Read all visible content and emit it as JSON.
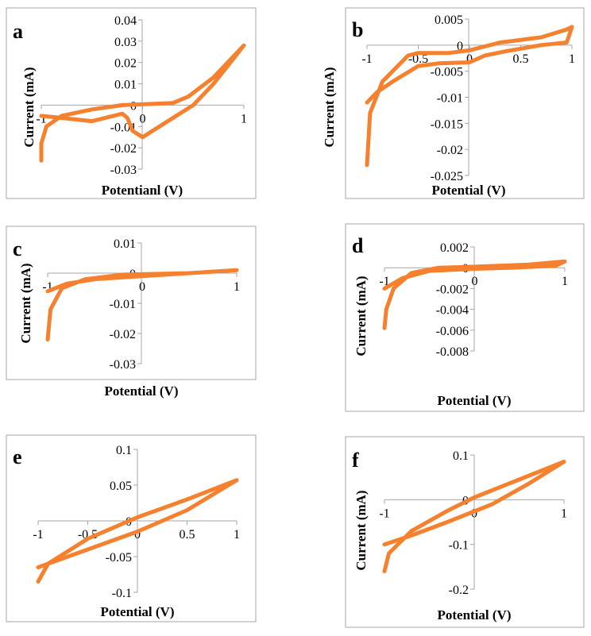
{
  "chart_data": [
    {
      "panel": "a",
      "type": "line",
      "xlabel": "Potentianl (V)",
      "ylabel": "Current (mA)",
      "xlim": [
        -1,
        1
      ],
      "ylim": [
        -0.03,
        0.04
      ],
      "xticks": [
        "-1",
        "0",
        "1"
      ],
      "xtick_values": [
        -1,
        0,
        1
      ],
      "yticks": [
        "0.04",
        "0.03",
        "0.02",
        "0.01",
        "0",
        "-0.01",
        "-0.02",
        "-0.03"
      ],
      "ytick_values": [
        0.04,
        0.03,
        0.02,
        0.01,
        0,
        -0.01,
        -0.02,
        -0.03
      ],
      "x": [
        -1,
        -1,
        -0.95,
        -0.8,
        -0.5,
        -0.2,
        0.3,
        0.45,
        0.7,
        1,
        0.7,
        0.5,
        0.3,
        0,
        -0.1,
        -0.15,
        -0.2,
        -0.5,
        -0.8,
        -1
      ],
      "y": [
        -0.026,
        -0.018,
        -0.01,
        -0.005,
        -0.002,
        0,
        0.001,
        0.004,
        0.013,
        0.028,
        0.01,
        0,
        -0.006,
        -0.015,
        -0.012,
        -0.006,
        -0.004,
        -0.0075,
        -0.006,
        -0.005
      ]
    },
    {
      "panel": "b",
      "type": "line",
      "xlabel": "Potential (V)",
      "ylabel": "Current (mA)",
      "xlim": [
        -1,
        1
      ],
      "ylim": [
        -0.025,
        0.005
      ],
      "xticks": [
        "-1",
        "-0.5",
        "0",
        "0.5",
        "1"
      ],
      "xtick_values": [
        -1,
        -0.5,
        0,
        0.5,
        1
      ],
      "yticks": [
        "0.005",
        "0",
        "-0.005",
        "-0.01",
        "-0.015",
        "-0.02",
        "-0.025"
      ],
      "ytick_values": [
        0.005,
        0,
        -0.005,
        -0.01,
        -0.015,
        -0.02,
        -0.025
      ],
      "x": [
        -1,
        -0.97,
        -0.85,
        -0.6,
        -0.5,
        -0.2,
        0,
        0.3,
        0.7,
        0.95,
        1,
        0.95,
        0.7,
        0.35,
        0.15,
        0,
        -0.3,
        -0.5,
        -0.75,
        -0.9,
        -1
      ],
      "y": [
        -0.023,
        -0.013,
        -0.007,
        -0.002,
        -0.0015,
        -0.0015,
        -0.001,
        0.0005,
        0.0015,
        0.003,
        0.0035,
        0.0005,
        0,
        -0.0012,
        -0.002,
        -0.0033,
        -0.0035,
        -0.004,
        -0.007,
        -0.009,
        -0.011
      ]
    },
    {
      "panel": "c",
      "type": "line",
      "xlabel": "Potential (V)",
      "ylabel": "Current (mA)",
      "xlim": [
        -1,
        1
      ],
      "ylim": [
        -0.03,
        0.01
      ],
      "xticks": [
        "-1",
        "0",
        "1"
      ],
      "xtick_values": [
        -1,
        0,
        1
      ],
      "yticks": [
        "0.01",
        "0",
        "-0.01",
        "-0.02",
        "-0.03"
      ],
      "ytick_values": [
        0.01,
        0,
        -0.01,
        -0.02,
        -0.03
      ],
      "x": [
        -1,
        -0.97,
        -0.85,
        -0.6,
        -0.2,
        0.5,
        1,
        0.5,
        0,
        -0.5,
        -0.8,
        -1
      ],
      "y": [
        -0.022,
        -0.012,
        -0.005,
        -0.002,
        -0.0005,
        0,
        0.001,
        0,
        -0.001,
        -0.002,
        -0.0035,
        -0.006
      ]
    },
    {
      "panel": "d",
      "type": "line",
      "xlabel": "Potential (V)",
      "ylabel": "Current (mA)",
      "xlim": [
        -1,
        1
      ],
      "ylim": [
        -0.008,
        0.002
      ],
      "xticks": [
        "-1",
        "0",
        "1"
      ],
      "xtick_values": [
        -1,
        0,
        1
      ],
      "yticks": [
        "0.002",
        "0",
        "-0.002",
        "-0.004",
        "-0.006",
        "-0.008"
      ],
      "ytick_values": [
        0.002,
        0,
        -0.002,
        -0.004,
        -0.006,
        -0.008
      ],
      "x": [
        -1,
        -0.98,
        -0.9,
        -0.7,
        -0.4,
        0,
        0.6,
        1,
        0.9,
        0.4,
        0,
        -0.5,
        -0.8,
        -1
      ],
      "y": [
        -0.0058,
        -0.004,
        -0.002,
        -0.0005,
        0,
        0.0001,
        0.0003,
        0.0006,
        0.0002,
        0,
        -0.0001,
        -0.0003,
        -0.001,
        -0.002
      ]
    },
    {
      "panel": "e",
      "type": "line",
      "xlabel": "Potential (V)",
      "ylabel": "",
      "xlim": [
        -1,
        1
      ],
      "ylim": [
        -0.1,
        0.1
      ],
      "xticks": [
        "-1",
        "-0.5",
        "0",
        "0.5",
        "1"
      ],
      "xtick_values": [
        -1,
        -0.5,
        0,
        0.5,
        1
      ],
      "yticks": [
        "0.1",
        "0.05",
        "0",
        "-0.05",
        "-0.1"
      ],
      "ytick_values": [
        0.1,
        0.05,
        0,
        -0.05,
        -0.1
      ],
      "x": [
        -1,
        -0.9,
        -0.5,
        0,
        0.5,
        1,
        0.5,
        0,
        -0.5,
        -1
      ],
      "y": [
        -0.085,
        -0.06,
        -0.025,
        0.005,
        0.03,
        0.057,
        0.015,
        -0.015,
        -0.04,
        -0.065
      ]
    },
    {
      "panel": "f",
      "type": "line",
      "xlabel": "Potential (V)",
      "ylabel": "Current (mA)",
      "xlim": [
        -1,
        1
      ],
      "ylim": [
        -0.2,
        0.1
      ],
      "xticks": [
        "-1",
        "0",
        "1"
      ],
      "xtick_values": [
        -1,
        0,
        1
      ],
      "yticks": [
        "0.1",
        "0",
        "-0.1",
        "-0.2"
      ],
      "ytick_values": [
        0.1,
        0,
        -0.1,
        -0.2
      ],
      "x": [
        -1,
        -0.95,
        -0.7,
        -0.3,
        0,
        0.5,
        1,
        0.6,
        0.2,
        -0.3,
        -0.7,
        -1
      ],
      "y": [
        -0.16,
        -0.12,
        -0.07,
        -0.025,
        0.005,
        0.045,
        0.085,
        0.035,
        -0.01,
        -0.05,
        -0.08,
        -0.1
      ]
    }
  ],
  "colors": {
    "series": "#f5802e",
    "axis": "#a6a6a6",
    "frame": "#a6a6a6"
  }
}
